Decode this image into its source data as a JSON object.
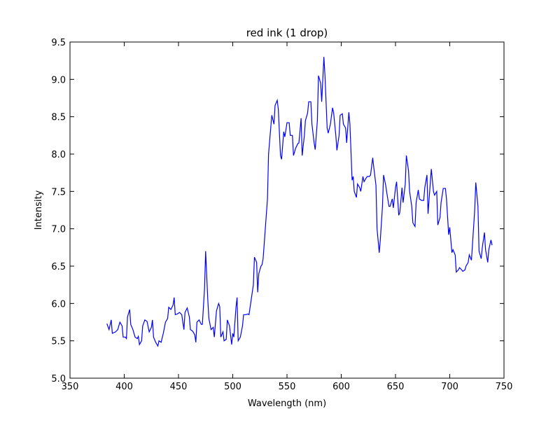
{
  "chart_data": {
    "type": "line",
    "title": "red ink (1 drop)",
    "xlabel": "Wavelength (nm)",
    "ylabel": "Intensity",
    "color": "#0000ff",
    "x": [
      384,
      386,
      388,
      389,
      392,
      394,
      396,
      398,
      399,
      401,
      402,
      403,
      405,
      406,
      408,
      410,
      412,
      413,
      414,
      416,
      417,
      419,
      421,
      423,
      425,
      426,
      427,
      429,
      431,
      432,
      434,
      436,
      438,
      440,
      441,
      443,
      445,
      446,
      447,
      449,
      451,
      453,
      455,
      456,
      458,
      460,
      461,
      463,
      465,
      466,
      467,
      469,
      471,
      472,
      474,
      475,
      477,
      478,
      480,
      482,
      483,
      485,
      487,
      488,
      489,
      491,
      492,
      494,
      495,
      497,
      499,
      500,
      501,
      503,
      504,
      505,
      507,
      509,
      510,
      512,
      514,
      515,
      517,
      519,
      520,
      522,
      523,
      524,
      526,
      527,
      528,
      530,
      532,
      533,
      535,
      536,
      538,
      539,
      541,
      542,
      544,
      545,
      547,
      548,
      550,
      552,
      553,
      555,
      556,
      558,
      560,
      561,
      563,
      564,
      566,
      567,
      569,
      570,
      572,
      573,
      575,
      576,
      578,
      579,
      581,
      582,
      584,
      585,
      587,
      588,
      590,
      592,
      593,
      595,
      596,
      598,
      599,
      601,
      602,
      604,
      605,
      607,
      608,
      610,
      611,
      612,
      614,
      615,
      617,
      618,
      620,
      621,
      623,
      624,
      626,
      627,
      629,
      630,
      632,
      633,
      635,
      636,
      638,
      639,
      641,
      642,
      644,
      645,
      647,
      648,
      650,
      651,
      653,
      654,
      656,
      657,
      659,
      660,
      662,
      663,
      665,
      666,
      668,
      669,
      671,
      672,
      674,
      676,
      677,
      679,
      680,
      682,
      683,
      685,
      686,
      688,
      689,
      691,
      692,
      694,
      696,
      697,
      699,
      700,
      702,
      703,
      705,
      706,
      708,
      709,
      711,
      712,
      714,
      715,
      717,
      718,
      720,
      721,
      723,
      724,
      726,
      727,
      729,
      730,
      732,
      733,
      735,
      736,
      738,
      739
    ],
    "values": [
      5.73,
      5.65,
      5.78,
      5.6,
      5.62,
      5.65,
      5.75,
      5.7,
      5.55,
      5.55,
      5.53,
      5.82,
      5.92,
      5.72,
      5.65,
      5.55,
      5.53,
      5.56,
      5.45,
      5.5,
      5.7,
      5.78,
      5.76,
      5.62,
      5.68,
      5.78,
      5.55,
      5.48,
      5.43,
      5.5,
      5.48,
      5.6,
      5.75,
      5.8,
      5.95,
      5.92,
      5.98,
      6.08,
      5.85,
      5.86,
      5.88,
      5.85,
      5.65,
      5.88,
      5.94,
      5.82,
      5.65,
      5.63,
      5.58,
      5.48,
      5.75,
      5.78,
      5.72,
      5.72,
      6.2,
      6.7,
      6.05,
      5.8,
      5.65,
      5.68,
      5.55,
      5.9,
      6.0,
      5.96,
      5.55,
      5.62,
      5.5,
      5.52,
      5.78,
      5.7,
      5.45,
      5.6,
      5.55,
      5.95,
      6.08,
      5.5,
      5.55,
      5.7,
      5.85,
      5.85,
      5.86,
      5.85,
      6.05,
      6.25,
      6.62,
      6.55,
      6.15,
      6.4,
      6.5,
      6.52,
      6.6,
      7.0,
      7.4,
      8.0,
      8.35,
      8.52,
      8.4,
      8.65,
      8.72,
      8.6,
      7.98,
      7.93,
      8.3,
      8.23,
      8.42,
      8.42,
      8.25,
      8.25,
      7.98,
      8.08,
      8.14,
      8.15,
      8.48,
      7.98,
      8.25,
      8.45,
      8.55,
      8.7,
      8.7,
      8.4,
      8.15,
      8.06,
      8.45,
      9.05,
      8.95,
      8.7,
      9.3,
      9.05,
      8.35,
      8.28,
      8.4,
      8.62,
      8.55,
      8.25,
      8.05,
      8.25,
      8.52,
      8.54,
      8.4,
      8.35,
      8.15,
      8.56,
      8.4,
      7.65,
      7.7,
      7.5,
      7.42,
      7.6,
      7.55,
      7.5,
      7.7,
      7.63,
      7.68,
      7.7,
      7.7,
      7.72,
      7.95,
      7.82,
      7.58,
      7.0,
      6.68,
      6.85,
      7.3,
      7.72,
      7.58,
      7.48,
      7.3,
      7.3,
      7.4,
      7.28,
      7.55,
      7.63,
      7.18,
      7.22,
      7.55,
      7.35,
      7.6,
      7.98,
      7.78,
      7.5,
      7.3,
      7.08,
      7.03,
      7.35,
      7.52,
      7.4,
      7.38,
      7.38,
      7.55,
      7.72,
      7.2,
      7.6,
      7.8,
      7.5,
      7.45,
      7.5,
      7.05,
      7.15,
      7.35,
      7.54,
      7.54,
      7.4,
      6.92,
      7.02,
      6.68,
      6.72,
      6.65,
      6.42,
      6.45,
      6.48,
      6.45,
      6.43,
      6.45,
      6.5,
      6.55,
      6.65,
      6.58,
      6.8,
      7.25,
      7.62,
      7.3,
      6.7,
      6.6,
      6.75,
      6.95,
      6.72,
      6.55,
      6.72,
      6.85,
      6.78
    ],
    "xlim": [
      350,
      750
    ],
    "xticks": [
      350,
      400,
      450,
      500,
      550,
      600,
      650,
      700,
      750
    ],
    "ylim": [
      5,
      9.5
    ],
    "yticks": [
      {
        "value": 5,
        "label": "5.0"
      },
      5.5,
      {
        "value": 6,
        "label": "6.0"
      },
      6.5,
      {
        "value": 7,
        "label": "7.0"
      },
      7.5,
      {
        "value": 8,
        "label": "8.0"
      },
      8.5,
      {
        "value": 9,
        "label": "9.0"
      },
      9.5
    ]
  }
}
